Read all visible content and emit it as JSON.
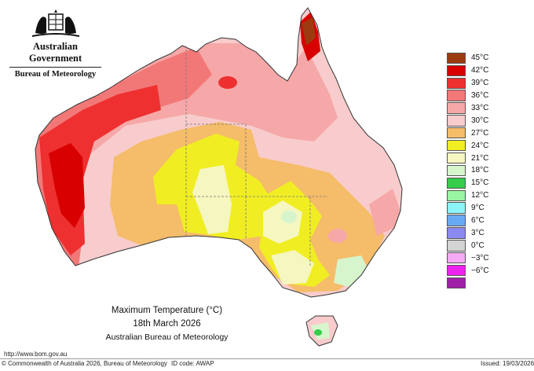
{
  "header": {
    "government": "Australian Government",
    "bureau": "Bureau of Meteorology"
  },
  "map": {
    "title": "Maximum Temperature (°C)",
    "date": "18th March 2026",
    "source": "Australian Bureau of Meteorology"
  },
  "legend": [
    {
      "label": "45°C",
      "color": "#9c3b10"
    },
    {
      "label": "42°C",
      "color": "#d80000"
    },
    {
      "label": "39°C",
      "color": "#ee3030"
    },
    {
      "label": "36°C",
      "color": "#f27878"
    },
    {
      "label": "33°C",
      "color": "#f6a8a8"
    },
    {
      "label": "30°C",
      "color": "#f8cccc"
    },
    {
      "label": "27°C",
      "color": "#f5bc6a"
    },
    {
      "label": "24°C",
      "color": "#f0ee22"
    },
    {
      "label": "21°C",
      "color": "#f6f6c0"
    },
    {
      "label": "18°C",
      "color": "#d6f5cd"
    },
    {
      "label": "15°C",
      "color": "#36cc4c"
    },
    {
      "label": "12°C",
      "color": "#9af5a2"
    },
    {
      "label": "9°C",
      "color": "#8cf4f8"
    },
    {
      "label": "6°C",
      "color": "#6aaaf2"
    },
    {
      "label": "3°C",
      "color": "#8a8af0"
    },
    {
      "label": "0°C",
      "color": "#d4d4d4"
    },
    {
      "label": "−3°C",
      "color": "#f6aaf6"
    },
    {
      "label": "−6°C",
      "color": "#ee22ee"
    },
    {
      "label": "",
      "color": "#a020a8"
    }
  ],
  "footer": {
    "url": "http://www.bom.gov.au",
    "copyright": "© Commonwealth of Australia 2026, Bureau of Meteorology",
    "id_code": "ID code: AWAP",
    "issued": "Issued: 19/03/2026"
  }
}
